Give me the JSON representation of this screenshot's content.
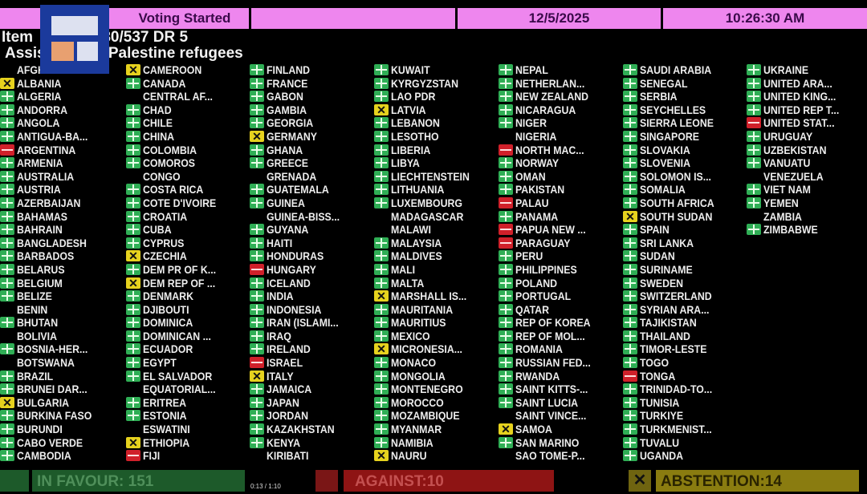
{
  "header": {
    "status": "Voting Started",
    "date": "12/5/2025",
    "time": "10:26:30 AM"
  },
  "item": {
    "prefix": "Item",
    "number": "A/80/537 DR 5",
    "title": "Assistance to Palestine refugees"
  },
  "watermark_logo": "央视新闻",
  "vote_colors": {
    "Y": "#2fae55",
    "N": "#d0202a",
    "A": "#e6d21e"
  },
  "columns": [
    [
      {
        "n": "AFGHANISTAN",
        "v": ""
      },
      {
        "n": "ALBANIA",
        "v": "A"
      },
      {
        "n": "ALGERIA",
        "v": "Y"
      },
      {
        "n": "ANDORRA",
        "v": "Y"
      },
      {
        "n": "ANGOLA",
        "v": "Y"
      },
      {
        "n": "ANTIGUA-BA...",
        "v": "Y"
      },
      {
        "n": "ARGENTINA",
        "v": "N"
      },
      {
        "n": "ARMENIA",
        "v": "Y"
      },
      {
        "n": "AUSTRALIA",
        "v": "Y"
      },
      {
        "n": "AUSTRIA",
        "v": "Y"
      },
      {
        "n": "AZERBAIJAN",
        "v": "Y"
      },
      {
        "n": "BAHAMAS",
        "v": "Y"
      },
      {
        "n": "BAHRAIN",
        "v": "Y"
      },
      {
        "n": "BANGLADESH",
        "v": "Y"
      },
      {
        "n": "BARBADOS",
        "v": "Y"
      },
      {
        "n": "BELARUS",
        "v": "Y"
      },
      {
        "n": "BELGIUM",
        "v": "Y"
      },
      {
        "n": "BELIZE",
        "v": "Y"
      },
      {
        "n": "BENIN",
        "v": ""
      },
      {
        "n": "BHUTAN",
        "v": "Y"
      },
      {
        "n": "BOLIVIA",
        "v": ""
      },
      {
        "n": "BOSNIA-HER...",
        "v": "Y"
      },
      {
        "n": "BOTSWANA",
        "v": ""
      },
      {
        "n": "BRAZIL",
        "v": "Y"
      },
      {
        "n": "BRUNEI DAR...",
        "v": "Y"
      },
      {
        "n": "BULGARIA",
        "v": "A"
      },
      {
        "n": "BURKINA FASO",
        "v": "Y"
      },
      {
        "n": "BURUNDI",
        "v": "Y"
      },
      {
        "n": "CABO VERDE",
        "v": "Y"
      },
      {
        "n": "CAMBODIA",
        "v": "Y"
      }
    ],
    [
      {
        "n": "CAMEROON",
        "v": "A"
      },
      {
        "n": "CANADA",
        "v": "Y"
      },
      {
        "n": "CENTRAL AF...",
        "v": ""
      },
      {
        "n": "CHAD",
        "v": "Y"
      },
      {
        "n": "CHILE",
        "v": "Y"
      },
      {
        "n": "CHINA",
        "v": "Y"
      },
      {
        "n": "COLOMBIA",
        "v": "Y"
      },
      {
        "n": "COMOROS",
        "v": "Y"
      },
      {
        "n": "CONGO",
        "v": ""
      },
      {
        "n": "COSTA RICA",
        "v": "Y"
      },
      {
        "n": "COTE D'IVOIRE",
        "v": "Y"
      },
      {
        "n": "CROATIA",
        "v": "Y"
      },
      {
        "n": "CUBA",
        "v": "Y"
      },
      {
        "n": "CYPRUS",
        "v": "Y"
      },
      {
        "n": "CZECHIA",
        "v": "A"
      },
      {
        "n": "DEM PR OF K...",
        "v": "Y"
      },
      {
        "n": "DEM REP OF ...",
        "v": "A"
      },
      {
        "n": "DENMARK",
        "v": "Y"
      },
      {
        "n": "DJIBOUTI",
        "v": "Y"
      },
      {
        "n": "DOMINICA",
        "v": "Y"
      },
      {
        "n": "DOMINICAN ...",
        "v": "Y"
      },
      {
        "n": "ECUADOR",
        "v": "Y"
      },
      {
        "n": "EGYPT",
        "v": "Y"
      },
      {
        "n": "EL SALVADOR",
        "v": "Y"
      },
      {
        "n": "EQUATORIAL...",
        "v": ""
      },
      {
        "n": "ERITREA",
        "v": "Y"
      },
      {
        "n": "ESTONIA",
        "v": "Y"
      },
      {
        "n": "ESWATINI",
        "v": ""
      },
      {
        "n": "ETHIOPIA",
        "v": "A"
      },
      {
        "n": "FIJI",
        "v": "N"
      }
    ],
    [
      {
        "n": "FINLAND",
        "v": "Y"
      },
      {
        "n": "FRANCE",
        "v": "Y"
      },
      {
        "n": "GABON",
        "v": "Y"
      },
      {
        "n": "GAMBIA",
        "v": "Y"
      },
      {
        "n": "GEORGIA",
        "v": "Y"
      },
      {
        "n": "GERMANY",
        "v": "A"
      },
      {
        "n": "GHANA",
        "v": "Y"
      },
      {
        "n": "GREECE",
        "v": "Y"
      },
      {
        "n": "GRENADA",
        "v": ""
      },
      {
        "n": "GUATEMALA",
        "v": "Y"
      },
      {
        "n": "GUINEA",
        "v": "Y"
      },
      {
        "n": "GUINEA-BISS...",
        "v": ""
      },
      {
        "n": "GUYANA",
        "v": "Y"
      },
      {
        "n": "HAITI",
        "v": "Y"
      },
      {
        "n": "HONDURAS",
        "v": "Y"
      },
      {
        "n": "HUNGARY",
        "v": "N"
      },
      {
        "n": "ICELAND",
        "v": "Y"
      },
      {
        "n": "INDIA",
        "v": "Y"
      },
      {
        "n": "INDONESIA",
        "v": "Y"
      },
      {
        "n": "IRAN (ISLAMI...",
        "v": "Y"
      },
      {
        "n": "IRAQ",
        "v": "Y"
      },
      {
        "n": "IRELAND",
        "v": "Y"
      },
      {
        "n": "ISRAEL",
        "v": "N"
      },
      {
        "n": "ITALY",
        "v": "A"
      },
      {
        "n": "JAMAICA",
        "v": "Y"
      },
      {
        "n": "JAPAN",
        "v": "Y"
      },
      {
        "n": "JORDAN",
        "v": "Y"
      },
      {
        "n": "KAZAKHSTAN",
        "v": "Y"
      },
      {
        "n": "KENYA",
        "v": "Y"
      },
      {
        "n": "KIRIBATI",
        "v": ""
      }
    ],
    [
      {
        "n": "KUWAIT",
        "v": "Y"
      },
      {
        "n": "KYRGYZSTAN",
        "v": "Y"
      },
      {
        "n": "LAO PDR",
        "v": "Y"
      },
      {
        "n": "LATVIA",
        "v": "A"
      },
      {
        "n": "LEBANON",
        "v": "Y"
      },
      {
        "n": "LESOTHO",
        "v": "Y"
      },
      {
        "n": "LIBERIA",
        "v": "Y"
      },
      {
        "n": "LIBYA",
        "v": "Y"
      },
      {
        "n": "LIECHTENSTEIN",
        "v": "Y"
      },
      {
        "n": "LITHUANIA",
        "v": "Y"
      },
      {
        "n": "LUXEMBOURG",
        "v": "Y"
      },
      {
        "n": "MADAGASCAR",
        "v": ""
      },
      {
        "n": "MALAWI",
        "v": ""
      },
      {
        "n": "MALAYSIA",
        "v": "Y"
      },
      {
        "n": "MALDIVES",
        "v": "Y"
      },
      {
        "n": "MALI",
        "v": "Y"
      },
      {
        "n": "MALTA",
        "v": "Y"
      },
      {
        "n": "MARSHALL IS...",
        "v": "A"
      },
      {
        "n": "MAURITANIA",
        "v": "Y"
      },
      {
        "n": "MAURITIUS",
        "v": "Y"
      },
      {
        "n": "MEXICO",
        "v": "Y"
      },
      {
        "n": "MICRONESIA...",
        "v": "A"
      },
      {
        "n": "MONACO",
        "v": "Y"
      },
      {
        "n": "MONGOLIA",
        "v": "Y"
      },
      {
        "n": "MONTENEGRO",
        "v": "Y"
      },
      {
        "n": "MOROCCO",
        "v": "Y"
      },
      {
        "n": "MOZAMBIQUE",
        "v": "Y"
      },
      {
        "n": "MYANMAR",
        "v": "Y"
      },
      {
        "n": "NAMIBIA",
        "v": "Y"
      },
      {
        "n": "NAURU",
        "v": "A"
      }
    ],
    [
      {
        "n": "NEPAL",
        "v": "Y"
      },
      {
        "n": "NETHERLAN...",
        "v": "Y"
      },
      {
        "n": "NEW ZEALAND",
        "v": "Y"
      },
      {
        "n": "NICARAGUA",
        "v": "Y"
      },
      {
        "n": "NIGER",
        "v": "Y"
      },
      {
        "n": "NIGERIA",
        "v": ""
      },
      {
        "n": "NORTH MAC...",
        "v": "N"
      },
      {
        "n": "NORWAY",
        "v": "Y"
      },
      {
        "n": "OMAN",
        "v": "Y"
      },
      {
        "n": "PAKISTAN",
        "v": "Y"
      },
      {
        "n": "PALAU",
        "v": "N"
      },
      {
        "n": "PANAMA",
        "v": "Y"
      },
      {
        "n": "PAPUA NEW ...",
        "v": "N"
      },
      {
        "n": "PARAGUAY",
        "v": "N"
      },
      {
        "n": "PERU",
        "v": "Y"
      },
      {
        "n": "PHILIPPINES",
        "v": "Y"
      },
      {
        "n": "POLAND",
        "v": "Y"
      },
      {
        "n": "PORTUGAL",
        "v": "Y"
      },
      {
        "n": "QATAR",
        "v": "Y"
      },
      {
        "n": "REP OF KOREA",
        "v": "Y"
      },
      {
        "n": "REP OF MOL...",
        "v": "Y"
      },
      {
        "n": "ROMANIA",
        "v": "Y"
      },
      {
        "n": "RUSSIAN FED...",
        "v": "Y"
      },
      {
        "n": "RWANDA",
        "v": "Y"
      },
      {
        "n": "SAINT KITTS-...",
        "v": "Y"
      },
      {
        "n": "SAINT LUCIA",
        "v": "Y"
      },
      {
        "n": "SAINT VINCE...",
        "v": ""
      },
      {
        "n": "SAMOA",
        "v": "A"
      },
      {
        "n": "SAN MARINO",
        "v": "Y"
      },
      {
        "n": "SAO TOME-P...",
        "v": ""
      }
    ],
    [
      {
        "n": "SAUDI ARABIA",
        "v": "Y"
      },
      {
        "n": "SENEGAL",
        "v": "Y"
      },
      {
        "n": "SERBIA",
        "v": "Y"
      },
      {
        "n": "SEYCHELLES",
        "v": "Y"
      },
      {
        "n": "SIERRA LEONE",
        "v": "Y"
      },
      {
        "n": "SINGAPORE",
        "v": "Y"
      },
      {
        "n": "SLOVAKIA",
        "v": "Y"
      },
      {
        "n": "SLOVENIA",
        "v": "Y"
      },
      {
        "n": "SOLOMON IS...",
        "v": "Y"
      },
      {
        "n": "SOMALIA",
        "v": "Y"
      },
      {
        "n": "SOUTH AFRICA",
        "v": "Y"
      },
      {
        "n": "SOUTH SUDAN",
        "v": "A"
      },
      {
        "n": "SPAIN",
        "v": "Y"
      },
      {
        "n": "SRI LANKA",
        "v": "Y"
      },
      {
        "n": "SUDAN",
        "v": "Y"
      },
      {
        "n": "SURINAME",
        "v": "Y"
      },
      {
        "n": "SWEDEN",
        "v": "Y"
      },
      {
        "n": "SWITZERLAND",
        "v": "Y"
      },
      {
        "n": "SYRIAN ARA...",
        "v": "Y"
      },
      {
        "n": "TAJIKISTAN",
        "v": "Y"
      },
      {
        "n": "THAILAND",
        "v": "Y"
      },
      {
        "n": "TIMOR-LESTE",
        "v": "Y"
      },
      {
        "n": "TOGO",
        "v": "Y"
      },
      {
        "n": "TONGA",
        "v": "N"
      },
      {
        "n": "TRINIDAD-TO...",
        "v": "Y"
      },
      {
        "n": "TUNISIA",
        "v": "Y"
      },
      {
        "n": "TURKIYE",
        "v": "Y"
      },
      {
        "n": "TURKMENIST...",
        "v": "Y"
      },
      {
        "n": "TUVALU",
        "v": "Y"
      },
      {
        "n": "UGANDA",
        "v": "Y"
      }
    ],
    [
      {
        "n": "UKRAINE",
        "v": "Y"
      },
      {
        "n": "UNITED ARA...",
        "v": "Y"
      },
      {
        "n": "UNITED KING...",
        "v": "Y"
      },
      {
        "n": "UNITED REP T...",
        "v": "Y"
      },
      {
        "n": "UNITED STAT...",
        "v": "N"
      },
      {
        "n": "URUGUAY",
        "v": "Y"
      },
      {
        "n": "UZBEKISTAN",
        "v": "Y"
      },
      {
        "n": "VANUATU",
        "v": "Y"
      },
      {
        "n": "VENEZUELA",
        "v": ""
      },
      {
        "n": "VIET NAM",
        "v": "Y"
      },
      {
        "n": "YEMEN",
        "v": "Y"
      },
      {
        "n": "ZAMBIA",
        "v": ""
      },
      {
        "n": "ZIMBABWE",
        "v": "Y"
      }
    ]
  ],
  "totals": {
    "in_favour": "IN FAVOUR: 151",
    "against": "AGAINST:10",
    "abstention": "ABSTENTION:14"
  },
  "player": {
    "time": "0:13 / 1:10"
  }
}
